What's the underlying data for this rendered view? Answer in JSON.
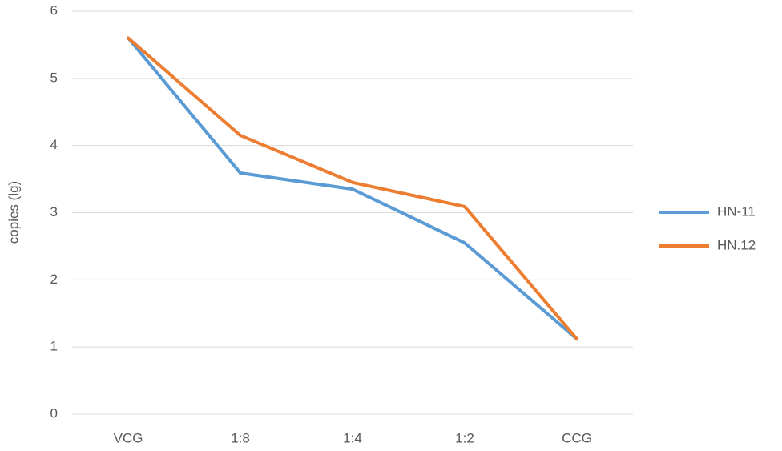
{
  "chart_data": {
    "type": "line",
    "y_label": "copies (lg)",
    "categories": [
      "VCG",
      "1:8",
      "1:4",
      "1:2",
      "CCG"
    ],
    "series": [
      {
        "name": "HN-11",
        "color": "#5b9bd5",
        "values": [
          5.6,
          3.59,
          3.35,
          2.55,
          1.12
        ]
      },
      {
        "name": "HN.12",
        "color": "#ed7d31",
        "values": [
          5.6,
          4.15,
          3.45,
          3.09,
          1.12
        ]
      }
    ],
    "ylim": [
      0,
      6
    ],
    "yticks": [
      0,
      1,
      2,
      3,
      4,
      5,
      6
    ],
    "grid": true,
    "legend": "right"
  }
}
